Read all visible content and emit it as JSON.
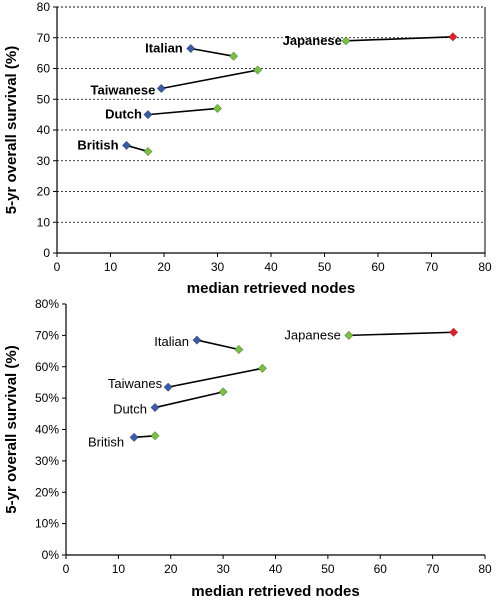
{
  "chart_data": [
    {
      "type": "scatter",
      "title": "",
      "xlabel": "median retrieved nodes",
      "ylabel": "5-yr overall survival (%)",
      "xlim": [
        0,
        80
      ],
      "ylim": [
        0,
        80
      ],
      "xticks": [
        "0",
        "10",
        "20",
        "30",
        "40",
        "50",
        "60",
        "70",
        "80"
      ],
      "yticks": [
        "0",
        "10",
        "20",
        "30",
        "40",
        "50",
        "60",
        "70",
        "80"
      ],
      "grid": "horizontal dashed",
      "colors": {
        "start": "#3a5ba8",
        "end": "#77c043",
        "japan_end": "#e0202a"
      },
      "pairs": [
        {
          "label": "Japanese",
          "x1": 54,
          "y1": 69,
          "x2": 74,
          "y2": 70.3,
          "c1": "#77c043",
          "c2": "#e0202a"
        },
        {
          "label": "Italian",
          "x1": 25,
          "y1": 66.5,
          "x2": 33,
          "y2": 64,
          "c1": "#3a5ba8",
          "c2": "#77c043"
        },
        {
          "label": "Taiwanese",
          "x1": 19.5,
          "y1": 53.5,
          "x2": 37.5,
          "y2": 59.5,
          "c1": "#3a5ba8",
          "c2": "#77c043"
        },
        {
          "label": "Dutch",
          "x1": 17,
          "y1": 45,
          "x2": 30,
          "y2": 47,
          "c1": "#3a5ba8",
          "c2": "#77c043"
        },
        {
          "label": "British",
          "x1": 13,
          "y1": 35,
          "x2": 17,
          "y2": 33,
          "c1": "#3a5ba8",
          "c2": "#77c043"
        }
      ]
    },
    {
      "type": "scatter",
      "title": "",
      "xlabel": "median retrieved nodes",
      "ylabel": "5-yr overall survival (%)",
      "xlim": [
        0,
        80
      ],
      "ylim": [
        0,
        80
      ],
      "xticks": [
        "0",
        "10",
        "20",
        "30",
        "40",
        "50",
        "60",
        "70",
        "80"
      ],
      "yticks": [
        "0%",
        "10%",
        "20%",
        "30%",
        "40%",
        "50%",
        "60%",
        "70%",
        "80%"
      ],
      "grid": "off",
      "colors": {
        "start": "#3a5ba8",
        "end": "#77c043",
        "japan_end": "#e0202a"
      },
      "pairs": [
        {
          "label": "Japanese",
          "x1": 54,
          "y1": 70,
          "x2": 74,
          "y2": 71,
          "c1": "#77c043",
          "c2": "#e0202a"
        },
        {
          "label": "Italian",
          "x1": 25,
          "y1": 68.5,
          "x2": 33,
          "y2": 65.5,
          "c1": "#3a5ba8",
          "c2": "#77c043"
        },
        {
          "label": "Taiwanes",
          "x1": 19.5,
          "y1": 53.5,
          "x2": 37.5,
          "y2": 59.5,
          "c1": "#3a5ba8",
          "c2": "#77c043"
        },
        {
          "label": "Dutch",
          "x1": 17,
          "y1": 47,
          "x2": 30,
          "y2": 52,
          "c1": "#3a5ba8",
          "c2": "#77c043"
        },
        {
          "label": "British",
          "x1": 13,
          "y1": 37.5,
          "x2": 17,
          "y2": 38,
          "c1": "#3a5ba8",
          "c2": "#77c043"
        }
      ]
    }
  ]
}
